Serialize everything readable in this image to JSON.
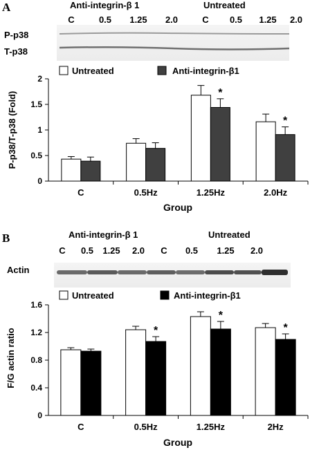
{
  "panels": [
    {
      "letter": "A",
      "blot": {
        "group_labels": [
          "Anti-integrin-β 1",
          "Untreated"
        ],
        "lanes": [
          "C",
          "0.5",
          "1.25",
          "2.0",
          "C",
          "0.5",
          "1.25",
          "2.0"
        ],
        "rows": [
          "P-p38",
          "T-p38"
        ]
      }
    },
    {
      "letter": "B",
      "blot": {
        "group_labels": [
          "Anti-integrin-β 1",
          "Untreated"
        ],
        "lanes": [
          "C",
          "0.5",
          "1.25",
          "2.0",
          "C",
          "0.5",
          "1.25",
          "2.0"
        ],
        "rows": [
          "Actin"
        ]
      }
    }
  ],
  "chart_data": [
    {
      "type": "bar",
      "categories": [
        "C",
        "0.5Hz",
        "1.25Hz",
        "2.0Hz"
      ],
      "series": [
        {
          "name": "Untreated",
          "values": [
            0.43,
            0.74,
            1.68,
            1.16
          ],
          "errors": [
            0.05,
            0.09,
            0.19,
            0.15
          ],
          "color": "#ffffff"
        },
        {
          "name": "Anti-integrin-β1",
          "values": [
            0.39,
            0.64,
            1.44,
            0.91
          ],
          "errors": [
            0.08,
            0.11,
            0.17,
            0.15
          ],
          "color": "#404040"
        }
      ],
      "significance": [
        "",
        "",
        "*",
        "*"
      ],
      "xlabel": "Group",
      "ylabel": "P-p38/T-p38 (Fold)",
      "ylim": [
        0,
        2
      ],
      "yticks": [
        "0",
        "0.5",
        "1",
        "1.5",
        "2"
      ],
      "legend": "top",
      "grid": false
    },
    {
      "type": "bar",
      "categories": [
        "C",
        "0.5Hz",
        "1.25Hz",
        "2Hz"
      ],
      "series": [
        {
          "name": "Untreated",
          "values": [
            0.95,
            1.24,
            1.43,
            1.27
          ],
          "errors": [
            0.03,
            0.05,
            0.07,
            0.06
          ],
          "color": "#ffffff"
        },
        {
          "name": "Anti-integrin-β1",
          "values": [
            0.93,
            1.07,
            1.25,
            1.1
          ],
          "errors": [
            0.03,
            0.07,
            0.11,
            0.08
          ],
          "color": "#000000"
        }
      ],
      "significance": [
        "",
        "*",
        "*",
        "*"
      ],
      "xlabel": "Group",
      "ylabel": "F/G actin ratio",
      "ylim": [
        0,
        1.6
      ],
      "yticks": [
        "0",
        "0.4",
        "0.8",
        "1.2",
        "1.6"
      ],
      "legend": "top",
      "grid": false
    }
  ]
}
